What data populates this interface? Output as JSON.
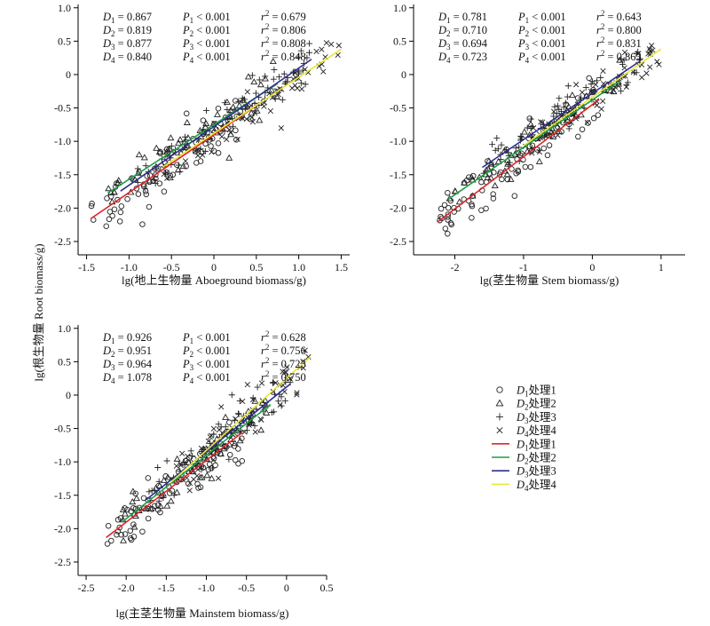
{
  "figure": {
    "ylabel": "lg(根生物量 Root biomass/g)"
  },
  "legend": {
    "items": [
      {
        "marker": "circle",
        "prefix": "D",
        "sub": "1",
        "suffix": "处理1"
      },
      {
        "marker": "triangle",
        "prefix": "D",
        "sub": "2",
        "suffix": "处理2"
      },
      {
        "marker": "plus",
        "prefix": "D",
        "sub": "3",
        "suffix": "处理3"
      },
      {
        "marker": "cross",
        "prefix": "D",
        "sub": "4",
        "suffix": "处理4"
      },
      {
        "marker": "line",
        "color": "#e0262b",
        "prefix": "D",
        "sub": "1",
        "suffix": "处理1"
      },
      {
        "marker": "line",
        "color": "#1f9e45",
        "prefix": "D",
        "sub": "2",
        "suffix": "处理2"
      },
      {
        "marker": "line",
        "color": "#2b2f8f",
        "prefix": "D",
        "sub": "3",
        "suffix": "处理3"
      },
      {
        "marker": "line",
        "color": "#e8e83a",
        "prefix": "D",
        "sub": "4",
        "suffix": "处理4"
      }
    ]
  },
  "chart_data": [
    {
      "type": "scatter",
      "id": "aboveground",
      "xlabel": "lg(地上生物量 Aboeground biomass/g)",
      "ylabel": "",
      "xlim": [
        -1.6,
        1.6
      ],
      "ylim": [
        -2.7,
        1.05
      ],
      "xticks": [
        -1.5,
        -1.0,
        -0.5,
        0,
        0.5,
        1.0,
        1.5
      ],
      "xtick_labels": [
        "-1.5",
        "-1.0",
        "-0.5",
        "0",
        "0.5",
        "1.0",
        "1.5"
      ],
      "yticks": [
        -2.5,
        -2.0,
        -1.5,
        -1.0,
        -0.5,
        0,
        0.5,
        1.0
      ],
      "ytick_labels": [
        "-2.5",
        "-2.0",
        "-1.5",
        "-1.0",
        "-0.5",
        "0",
        "0.5",
        "1.0"
      ],
      "stats": [
        {
          "D": "0.867",
          "P": "0.001",
          "r2": "0.679"
        },
        {
          "D": "0.819",
          "P": "0.001",
          "r2": "0.806"
        },
        {
          "D": "0.877",
          "P": "0.001",
          "r2": "0.808"
        },
        {
          "D": "0.840",
          "P": "0.001",
          "r2": "0.848"
        }
      ],
      "series": [
        {
          "marker": "circle",
          "line_color": "#e0262b",
          "slope": 0.867,
          "intercept": -0.9,
          "x_range": [
            -1.45,
            0.5
          ],
          "spread": 0.2,
          "n": 85
        },
        {
          "marker": "triangle",
          "line_color": "#1f9e45",
          "slope": 0.819,
          "intercept": -0.75,
          "x_range": [
            -1.25,
            0.75
          ],
          "spread": 0.16,
          "n": 60
        },
        {
          "marker": "plus",
          "line_color": "#2b2f8f",
          "slope": 0.877,
          "intercept": -0.78,
          "x_range": [
            -1.1,
            1.15
          ],
          "spread": 0.16,
          "n": 75
        },
        {
          "marker": "cross",
          "line_color": "#e8e83a",
          "slope": 0.84,
          "intercept": -0.88,
          "x_range": [
            -0.6,
            1.5
          ],
          "spread": 0.14,
          "n": 75
        }
      ]
    },
    {
      "type": "scatter",
      "id": "stem",
      "xlabel": "lg(茎生物量 Stem biomass/g)",
      "ylabel": "",
      "xlim": [
        -2.6,
        1.35
      ],
      "ylim": [
        -2.7,
        1.05
      ],
      "xticks": [
        -2,
        -1,
        0,
        1
      ],
      "xtick_labels": [
        "-2",
        "-1",
        "0",
        "1"
      ],
      "yticks": [
        -2.5,
        -2.0,
        -1.5,
        -1.0,
        -0.5,
        0,
        0.5,
        1.0
      ],
      "ytick_labels": [
        "-2.5",
        "-2.0",
        "-1.5",
        "-1.0",
        "-0.5",
        "0",
        "0.5",
        "1.0"
      ],
      "stats": [
        {
          "D": "0.781",
          "P": "0.001",
          "r2": "0.643"
        },
        {
          "D": "0.710",
          "P": "0.001",
          "r2": "0.800"
        },
        {
          "D": "0.694",
          "P": "0.001",
          "r2": "0.831"
        },
        {
          "D": "0.723",
          "P": "0.001",
          "r2": "0.863"
        }
      ],
      "series": [
        {
          "marker": "circle",
          "line_color": "#e0262b",
          "slope": 0.781,
          "intercept": -0.45,
          "x_range": [
            -2.25,
            0.1
          ],
          "spread": 0.18,
          "n": 85
        },
        {
          "marker": "triangle",
          "line_color": "#1f9e45",
          "slope": 0.71,
          "intercept": -0.38,
          "x_range": [
            -2.1,
            0.4
          ],
          "spread": 0.15,
          "n": 60
        },
        {
          "marker": "plus",
          "line_color": "#2b2f8f",
          "slope": 0.694,
          "intercept": -0.28,
          "x_range": [
            -1.6,
            0.7
          ],
          "spread": 0.15,
          "n": 75
        },
        {
          "marker": "cross",
          "line_color": "#e8e83a",
          "slope": 0.723,
          "intercept": -0.34,
          "x_range": [
            -1.0,
            1.0
          ],
          "spread": 0.13,
          "n": 75
        }
      ]
    },
    {
      "type": "scatter",
      "id": "mainstem",
      "xlabel": "lg(主茎生物量 Mainstem biomass/g)",
      "ylabel": "",
      "xlim": [
        -2.6,
        0.5
      ],
      "ylim": [
        -2.7,
        1.05
      ],
      "xticks": [
        -2.5,
        -2.0,
        -1.5,
        -1.0,
        -0.5,
        0,
        0.5
      ],
      "xtick_labels": [
        "-2.5",
        "-2.0",
        "-1.5",
        "-1.0",
        "-0.5",
        "0",
        "0.5"
      ],
      "yticks": [
        -2.5,
        -2.0,
        -1.5,
        -1.0,
        -0.5,
        0,
        0.5,
        1.0
      ],
      "ytick_labels": [
        "-2.5",
        "-2.0",
        "-1.5",
        "-1.0",
        "-0.5",
        "0",
        "0.5",
        "1.0"
      ],
      "stats": [
        {
          "D": "0.926",
          "P": "0.001",
          "r2": "0.628"
        },
        {
          "D": "0.951",
          "P": "0.001",
          "r2": "0.756"
        },
        {
          "D": "0.964",
          "P": "0.001",
          "r2": "0.723"
        },
        {
          "D": "1.078",
          "P": "0.001",
          "r2": "0.750"
        }
      ],
      "series": [
        {
          "marker": "circle",
          "line_color": "#e0262b",
          "slope": 0.926,
          "intercept": -0.05,
          "x_range": [
            -2.25,
            -0.55
          ],
          "spread": 0.2,
          "n": 85
        },
        {
          "marker": "triangle",
          "line_color": "#1f9e45",
          "slope": 0.951,
          "intercept": 0.05,
          "x_range": [
            -2.05,
            -0.2
          ],
          "spread": 0.17,
          "n": 60
        },
        {
          "marker": "plus",
          "line_color": "#2b2f8f",
          "slope": 0.964,
          "intercept": 0.12,
          "x_range": [
            -1.75,
            0.05
          ],
          "spread": 0.17,
          "n": 75
        },
        {
          "marker": "cross",
          "line_color": "#e8e83a",
          "slope": 1.078,
          "intercept": 0.25,
          "x_range": [
            -1.45,
            0.3
          ],
          "spread": 0.15,
          "n": 75
        }
      ]
    }
  ]
}
